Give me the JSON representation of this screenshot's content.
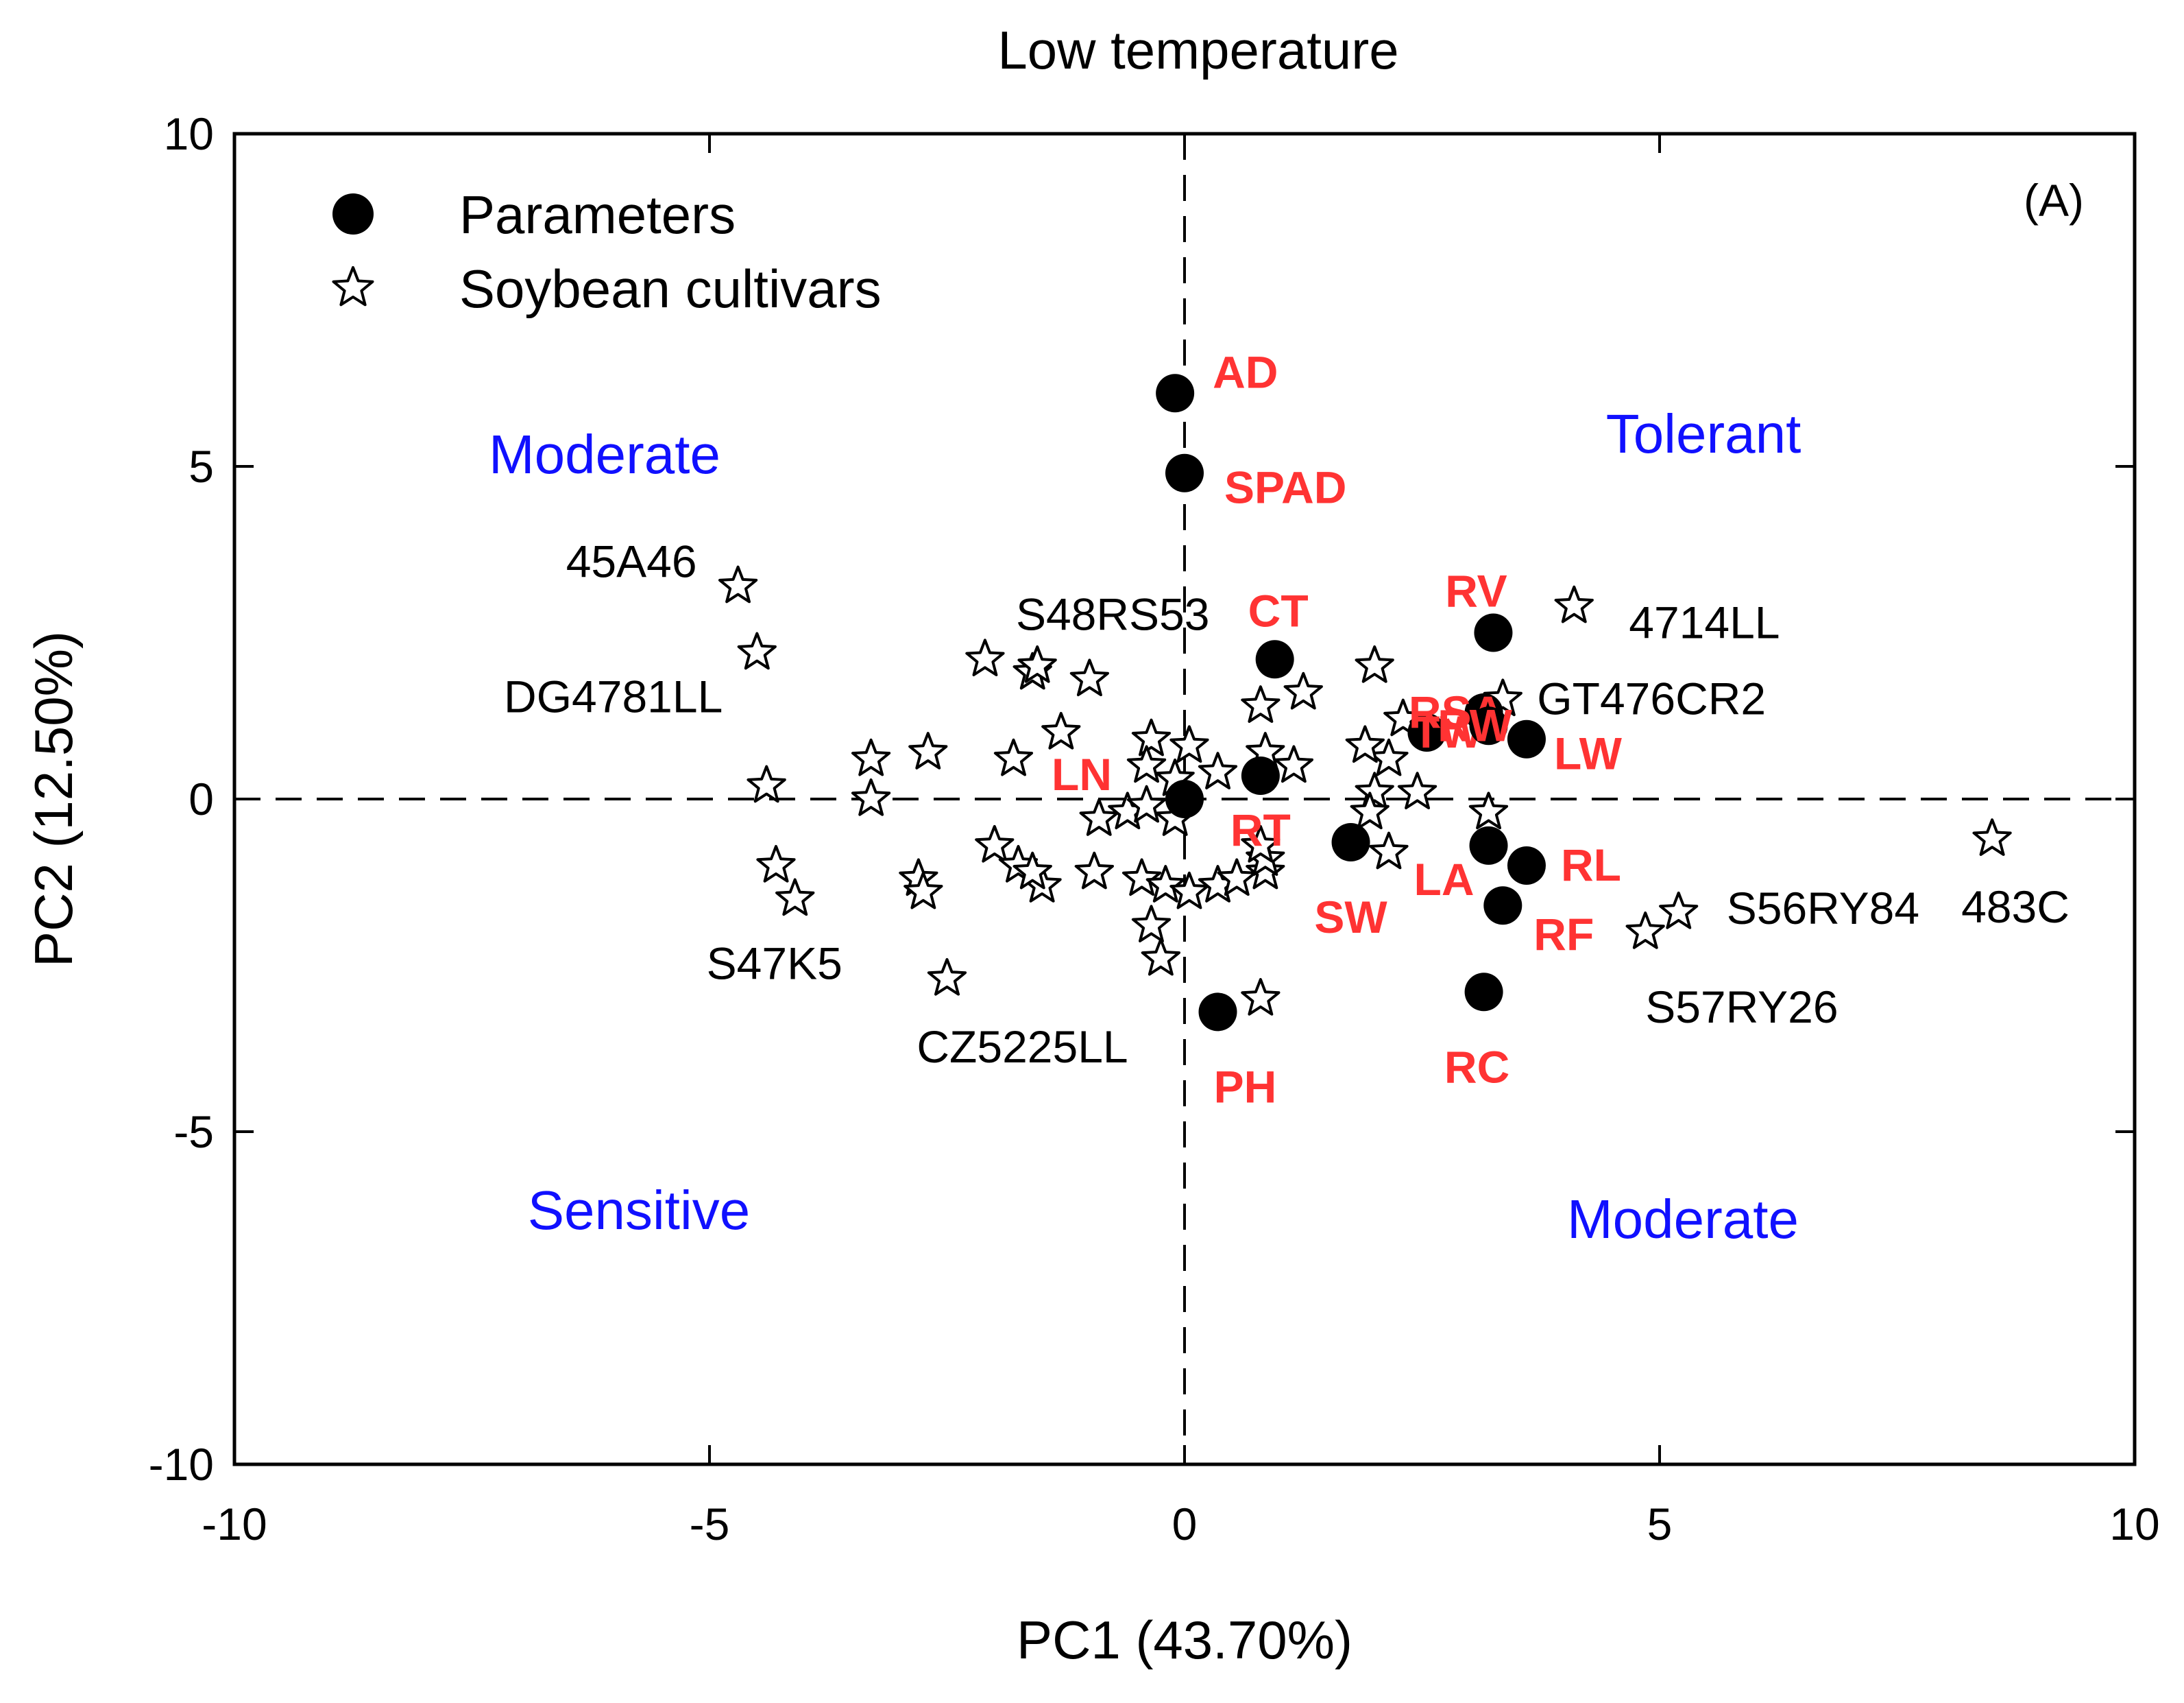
{
  "chart_data": {
    "type": "scatter",
    "title": "Low temperature",
    "xlabel": "PC1 (43.70%)",
    "ylabel": "PC2 (12.50%)",
    "xlim": [
      -10,
      10
    ],
    "ylim": [
      -10,
      10
    ],
    "xticks": [
      -10,
      -5,
      0,
      5,
      10
    ],
    "yticks": [
      -10,
      -5,
      0,
      5,
      10
    ],
    "xtick_labels": [
      "-10",
      "-5",
      "0",
      "5",
      "10"
    ],
    "ytick_labels": [
      "-10",
      "-5",
      "0",
      "5",
      "10"
    ],
    "grid": false,
    "reference_lines": {
      "x": 0,
      "y": 0,
      "style": "dashed"
    },
    "panel_tag": "(A)",
    "legend": {
      "placement": "top-left",
      "entries": [
        {
          "name": "Parameters",
          "marker": "filled-circle"
        },
        {
          "name": "Soybean cultivars",
          "marker": "open-star"
        }
      ]
    },
    "region_labels": [
      {
        "text": "Moderate",
        "quadrant": "upper-left"
      },
      {
        "text": "Tolerant",
        "quadrant": "upper-right"
      },
      {
        "text": "Sensitive",
        "quadrant": "lower-left"
      },
      {
        "text": "Moderate",
        "quadrant": "lower-right"
      }
    ],
    "colors": {
      "parameter_label": "#ff3333",
      "region_label": "#1010ff",
      "marker": "#000000"
    },
    "series": [
      {
        "name": "Parameters",
        "marker": "filled-circle",
        "points": [
          {
            "label": "AD",
            "x": -0.1,
            "y": 6.1
          },
          {
            "label": "SPAD",
            "x": 0.0,
            "y": 4.9
          },
          {
            "label": "CT",
            "x": 0.95,
            "y": 2.1
          },
          {
            "label": "RV",
            "x": 3.25,
            "y": 2.5
          },
          {
            "label": "TW",
            "x": 2.55,
            "y": 1.0
          },
          {
            "label": "RSA",
            "x": 3.15,
            "y": 1.3
          },
          {
            "label": "LW",
            "x": 3.6,
            "y": 0.9
          },
          {
            "label": "RW",
            "x": 3.2,
            "y": 1.1
          },
          {
            "label": "LN",
            "x": 0.0,
            "y": 0.0
          },
          {
            "label": "RT",
            "x": 0.8,
            "y": 0.35
          },
          {
            "label": "SW",
            "x": 1.75,
            "y": -0.65
          },
          {
            "label": "LA",
            "x": 3.2,
            "y": -0.7
          },
          {
            "label": "RL",
            "x": 3.6,
            "y": -1.0
          },
          {
            "label": "RF",
            "x": 3.35,
            "y": -1.6
          },
          {
            "label": "RC",
            "x": 3.15,
            "y": -2.9
          },
          {
            "label": "PH",
            "x": 0.35,
            "y": -3.2
          }
        ]
      },
      {
        "name": "Soybean cultivars",
        "marker": "open-star",
        "points": [
          {
            "label": "45A46",
            "x": -4.7,
            "y": 3.2
          },
          {
            "label": "DG4781LL",
            "x": -4.5,
            "y": 2.2
          },
          {
            "label": "S48RS53",
            "x": -2.1,
            "y": 2.1
          },
          {
            "label": "4714LL",
            "x": 4.1,
            "y": 2.9
          },
          {
            "label": "GT476CR2",
            "x": 3.35,
            "y": 1.5
          },
          {
            "label": "S47K5",
            "x": -4.1,
            "y": -1.5
          },
          {
            "label": "CZ5225LL",
            "x": -2.5,
            "y": -2.7
          },
          {
            "label": "S56RY84",
            "x": 5.2,
            "y": -1.7
          },
          {
            "label": "S57RY26",
            "x": 4.85,
            "y": -2.0
          },
          {
            "label": "483C",
            "x": 8.5,
            "y": -0.6
          },
          {
            "x": -1.6,
            "y": 1.9
          },
          {
            "x": -1.55,
            "y": 2.0
          },
          {
            "x": -1.0,
            "y": 1.8
          },
          {
            "x": -1.3,
            "y": 1.0
          },
          {
            "x": -0.35,
            "y": 0.9
          },
          {
            "x": 0.05,
            "y": 0.8
          },
          {
            "x": -0.4,
            "y": 0.5
          },
          {
            "x": 0.35,
            "y": 0.4
          },
          {
            "x": -0.1,
            "y": 0.3
          },
          {
            "x": 0.8,
            "y": 1.4
          },
          {
            "x": 1.25,
            "y": 1.6
          },
          {
            "x": 0.85,
            "y": 0.7
          },
          {
            "x": 1.15,
            "y": 0.5
          },
          {
            "x": 2.0,
            "y": 2.0
          },
          {
            "x": 2.3,
            "y": 1.2
          },
          {
            "x": 2.15,
            "y": 0.6
          },
          {
            "x": 1.9,
            "y": 0.8
          },
          {
            "x": 2.45,
            "y": 0.1
          },
          {
            "x": 2.0,
            "y": 0.1
          },
          {
            "x": 1.95,
            "y": -0.2
          },
          {
            "x": 2.15,
            "y": -0.8
          },
          {
            "x": 3.2,
            "y": -0.2
          },
          {
            "x": -3.3,
            "y": 0.6
          },
          {
            "x": -3.3,
            "y": 0.0
          },
          {
            "x": -2.7,
            "y": 0.7
          },
          {
            "x": -1.8,
            "y": 0.6
          },
          {
            "x": -4.4,
            "y": 0.2
          },
          {
            "x": -4.3,
            "y": -1.0
          },
          {
            "x": -2.8,
            "y": -1.2
          },
          {
            "x": -2.75,
            "y": -1.4
          },
          {
            "x": -2.0,
            "y": -0.7
          },
          {
            "x": -1.75,
            "y": -1.0
          },
          {
            "x": -1.5,
            "y": -1.3
          },
          {
            "x": -1.6,
            "y": -1.1
          },
          {
            "x": -0.9,
            "y": -0.3
          },
          {
            "x": -0.6,
            "y": -0.2
          },
          {
            "x": -0.4,
            "y": -0.1
          },
          {
            "x": -0.1,
            "y": -0.3
          },
          {
            "x": -0.95,
            "y": -1.1
          },
          {
            "x": -0.45,
            "y": -1.2
          },
          {
            "x": -0.2,
            "y": -1.3
          },
          {
            "x": 0.05,
            "y": -1.4
          },
          {
            "x": 0.35,
            "y": -1.3
          },
          {
            "x": 0.55,
            "y": -1.2
          },
          {
            "x": 0.85,
            "y": -1.1
          },
          {
            "x": 0.85,
            "y": -0.9
          },
          {
            "x": 0.8,
            "y": -0.7
          },
          {
            "x": -0.35,
            "y": -1.9
          },
          {
            "x": -0.25,
            "y": -2.4
          },
          {
            "x": 0.8,
            "y": -3.0
          }
        ]
      }
    ]
  }
}
